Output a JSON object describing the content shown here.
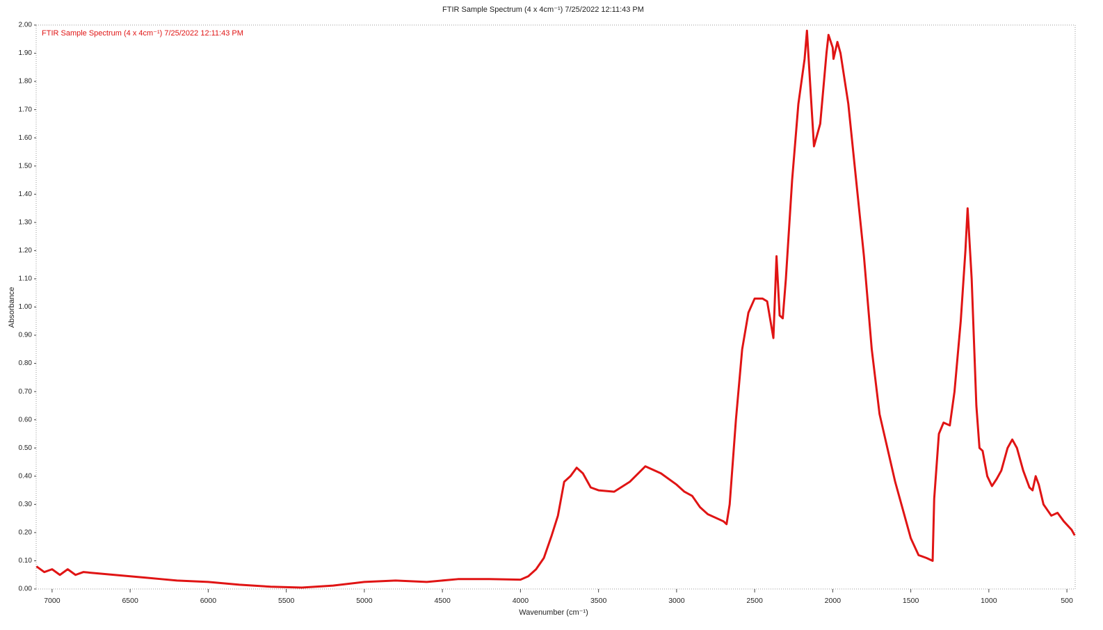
{
  "chart_data": {
    "type": "line",
    "title": "FTIR Sample Spectrum (4 x 4cm⁻¹) 7/25/2022 12:11:43 PM",
    "x_label": "Wavenumber (cm⁻¹)",
    "y_label": "Absorbance",
    "xlim": [
      7102,
      447
    ],
    "ylim": [
      0,
      2
    ],
    "xticks": [
      7000,
      6500,
      6000,
      5500,
      5000,
      4500,
      4000,
      3500,
      3000,
      2500,
      2000,
      1500,
      1000,
      500
    ],
    "yticks": [
      {
        "value": 0,
        "label": "0.00"
      },
      {
        "value": 0.1,
        "label": "0.10"
      },
      {
        "value": 0.2,
        "label": "0.20"
      },
      {
        "value": 0.3,
        "label": "0.30"
      },
      {
        "value": 0.4,
        "label": "0.40"
      },
      {
        "value": 0.5,
        "label": "0.50"
      },
      {
        "value": 0.6,
        "label": "0.60"
      },
      {
        "value": 0.7,
        "label": "0.70"
      },
      {
        "value": 0.8,
        "label": "0.80"
      },
      {
        "value": 0.9,
        "label": "0.90"
      },
      {
        "value": 1,
        "label": "1.00"
      },
      {
        "value": 1.1,
        "label": "1.10"
      },
      {
        "value": 1.2,
        "label": "1.20"
      },
      {
        "value": 1.3,
        "label": "1.30"
      },
      {
        "value": 1.4,
        "label": "1.40"
      },
      {
        "value": 1.5,
        "label": "1.50"
      },
      {
        "value": 1.6,
        "label": "1.60"
      },
      {
        "value": 1.7,
        "label": "1.70"
      },
      {
        "value": 1.8,
        "label": "1.80"
      },
      {
        "value": 1.9,
        "label": "1.90"
      },
      {
        "value": 2,
        "label": "2.00"
      }
    ],
    "grid": false,
    "x": [
      7100,
      7050,
      7000,
      6950,
      6900,
      6850,
      6800,
      6700,
      6600,
      6500,
      6400,
      6300,
      6200,
      6000,
      5800,
      5600,
      5400,
      5200,
      5000,
      4800,
      4600,
      4400,
      4200,
      4000,
      3950,
      3900,
      3850,
      3800,
      3760,
      3720,
      3680,
      3640,
      3600,
      3550,
      3500,
      3400,
      3300,
      3200,
      3100,
      3000,
      2950,
      2900,
      2850,
      2800,
      2700,
      2680,
      2660,
      2620,
      2580,
      2540,
      2500,
      2450,
      2420,
      2380,
      2360,
      2340,
      2320,
      2300,
      2260,
      2220,
      2180,
      2165,
      2140,
      2120,
      2080,
      2040,
      2027,
      2000,
      1995,
      1970,
      1950,
      1900,
      1850,
      1800,
      1750,
      1700,
      1650,
      1600,
      1550,
      1500,
      1450,
      1400,
      1360,
      1350,
      1320,
      1290,
      1250,
      1220,
      1180,
      1150,
      1136,
      1110,
      1080,
      1060,
      1040,
      1010,
      980,
      950,
      920,
      880,
      850,
      820,
      780,
      740,
      720,
      700,
      680,
      650,
      600,
      560,
      520,
      470,
      450
    ],
    "series": [
      {
        "name": "FTIR Sample Spectrum (4 x 4cm⁻¹) 7/25/2022 12:11:43 PM",
        "color": "#e01414",
        "values": [
          0.08,
          0.06,
          0.07,
          0.05,
          0.07,
          0.05,
          0.06,
          0.055,
          0.05,
          0.045,
          0.04,
          0.035,
          0.03,
          0.025,
          0.015,
          0.008,
          0.005,
          0.012,
          0.025,
          0.03,
          0.025,
          0.035,
          0.035,
          0.033,
          0.045,
          0.07,
          0.11,
          0.19,
          0.26,
          0.38,
          0.4,
          0.43,
          0.41,
          0.36,
          0.35,
          0.345,
          0.38,
          0.435,
          0.41,
          0.37,
          0.345,
          0.33,
          0.29,
          0.265,
          0.24,
          0.23,
          0.3,
          0.6,
          0.85,
          0.98,
          1.03,
          1.03,
          1.02,
          0.89,
          1.18,
          0.97,
          0.96,
          1.1,
          1.45,
          1.72,
          1.88,
          1.98,
          1.75,
          1.57,
          1.65,
          1.9,
          1.965,
          1.92,
          1.88,
          1.94,
          1.9,
          1.72,
          1.45,
          1.18,
          0.85,
          0.62,
          0.5,
          0.38,
          0.28,
          0.18,
          0.12,
          0.11,
          0.1,
          0.32,
          0.55,
          0.59,
          0.58,
          0.7,
          0.95,
          1.2,
          1.35,
          1.1,
          0.65,
          0.5,
          0.49,
          0.4,
          0.365,
          0.39,
          0.42,
          0.5,
          0.53,
          0.5,
          0.42,
          0.36,
          0.35,
          0.4,
          0.37,
          0.3,
          0.26,
          0.27,
          0.24,
          0.21,
          0.19
        ]
      }
    ]
  }
}
